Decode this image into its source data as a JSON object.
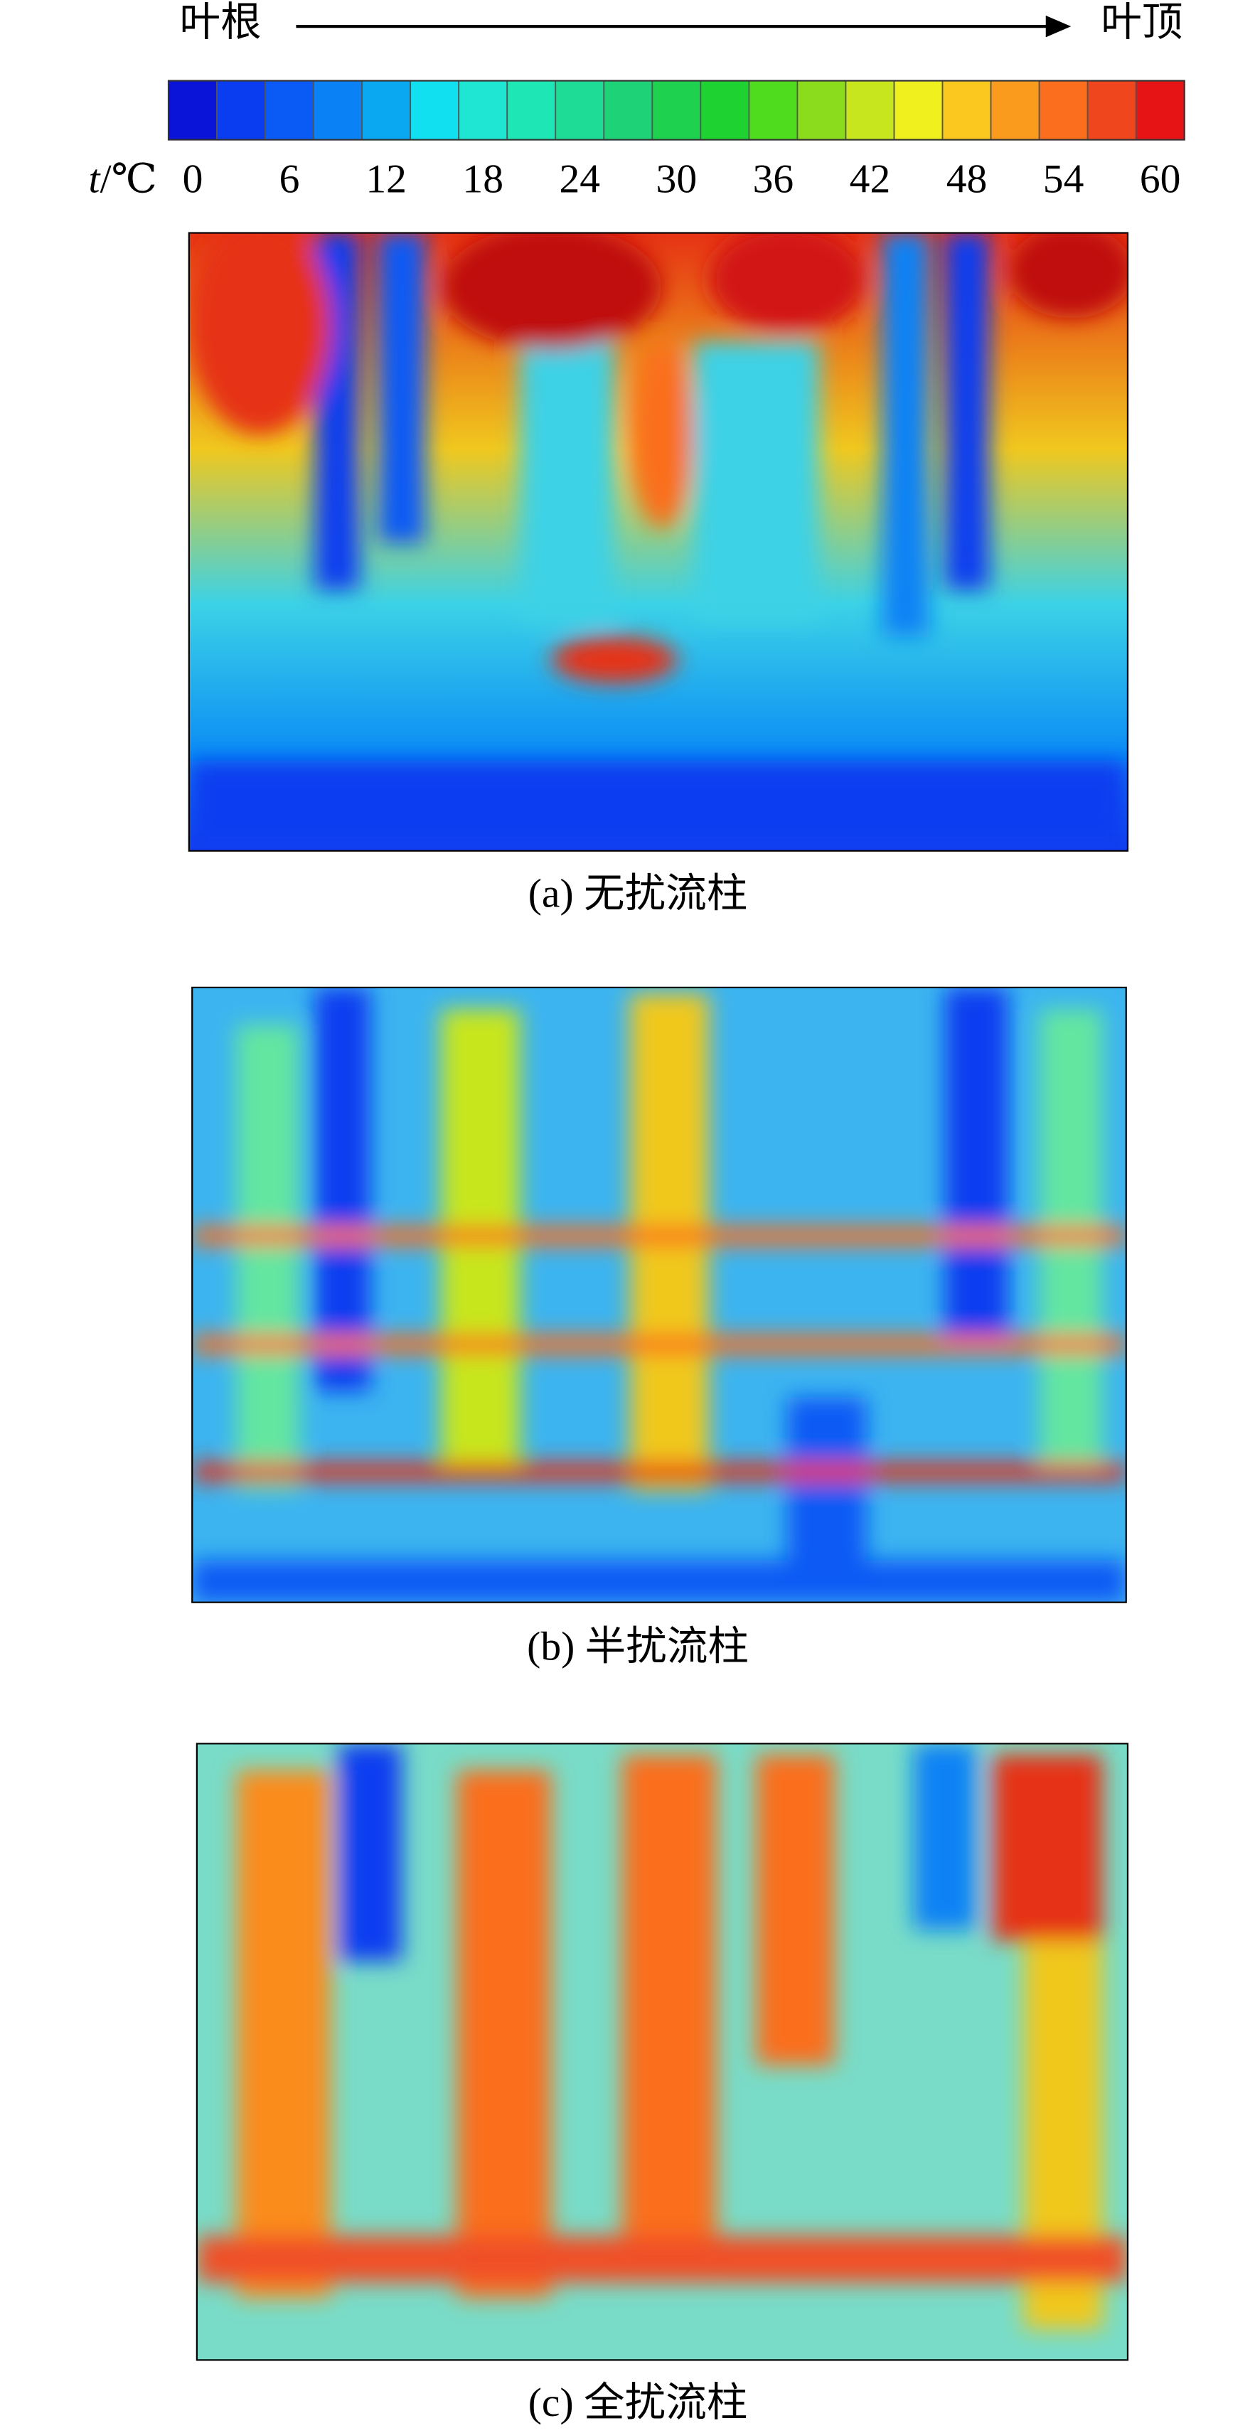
{
  "header": {
    "left_label": "叶根",
    "right_label": "叶顶"
  },
  "colorbar": {
    "var": "t",
    "unit": "/℃",
    "ticks": [
      0,
      6,
      12,
      18,
      24,
      30,
      36,
      42,
      48,
      54,
      60
    ],
    "colors": [
      "#0a14d8",
      "#0a3cf0",
      "#0a5af5",
      "#0a82f5",
      "#0aa8f0",
      "#10e0f0",
      "#1ee6d2",
      "#1ee6b4",
      "#1edc96",
      "#1ed278",
      "#1ed250",
      "#1ed232",
      "#50dc1e",
      "#8cdc1e",
      "#c8e61e",
      "#f0f01e",
      "#fac81e",
      "#fa9b1e",
      "#fa6e1e",
      "#f0461e",
      "#e61414"
    ]
  },
  "panels": [
    {
      "caption": "(a) 无扰流柱"
    },
    {
      "caption": "(b) 半扰流柱"
    },
    {
      "caption": "(c) 全扰流柱"
    }
  ]
}
